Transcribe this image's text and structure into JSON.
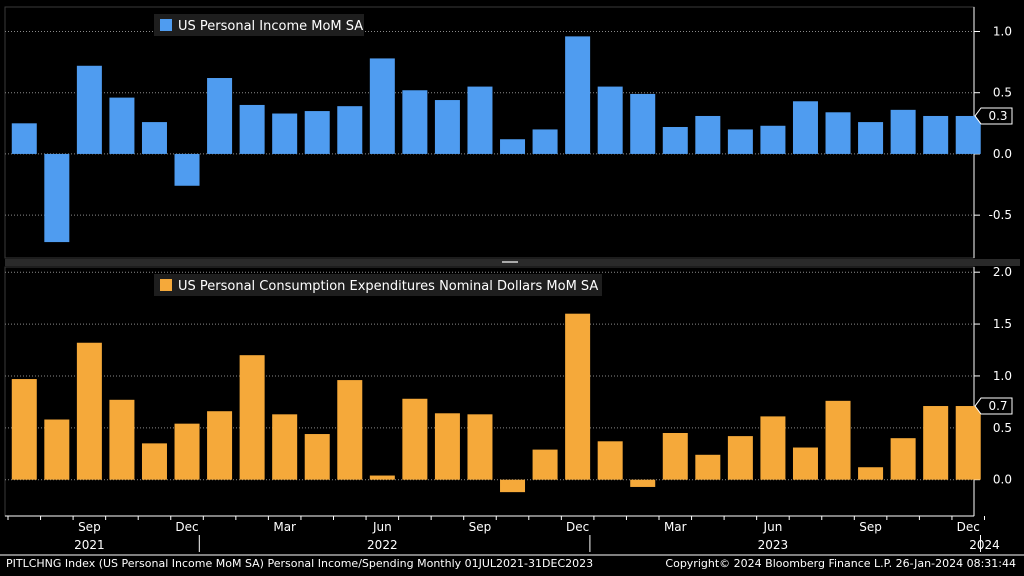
{
  "chart_data": [
    {
      "type": "bar",
      "legend": "US Personal Income MoM SA",
      "color": "#4f9cf0",
      "last_value_label": "0.3",
      "ylim": [
        -0.85,
        1.2
      ],
      "yticks": [
        1.0,
        0.5,
        0.0,
        -0.5
      ],
      "ytick_labels": [
        "1.0",
        "0.5",
        "0.0",
        "-0.5"
      ],
      "categories": [
        "2021-07",
        "2021-08",
        "2021-09",
        "2021-10",
        "2021-11",
        "2021-12",
        "2022-01",
        "2022-02",
        "2022-03",
        "2022-04",
        "2022-05",
        "2022-06",
        "2022-07",
        "2022-08",
        "2022-09",
        "2022-10",
        "2022-11",
        "2022-12",
        "2023-01",
        "2023-02",
        "2023-03",
        "2023-04",
        "2023-05",
        "2023-06",
        "2023-07",
        "2023-08",
        "2023-09",
        "2023-10",
        "2023-11",
        "2023-12"
      ],
      "values": [
        0.25,
        -0.72,
        0.72,
        0.46,
        0.26,
        -0.26,
        0.62,
        0.4,
        0.33,
        0.35,
        0.39,
        0.78,
        0.52,
        0.44,
        0.55,
        0.12,
        0.2,
        0.96,
        0.55,
        0.49,
        0.22,
        0.31,
        0.2,
        0.23,
        0.43,
        0.34,
        0.26,
        0.36,
        0.31,
        0.31
      ]
    },
    {
      "type": "bar",
      "legend": "US Personal Consumption Expenditures Nominal Dollars MoM SA",
      "color": "#f5a93a",
      "last_value_label": "0.7",
      "ylim": [
        -0.35,
        2.05
      ],
      "yticks": [
        2.0,
        1.5,
        1.0,
        0.5,
        0.0
      ],
      "ytick_labels": [
        "2.0",
        "1.5",
        "1.0",
        "0.5",
        "0.0"
      ],
      "categories": [
        "2021-07",
        "2021-08",
        "2021-09",
        "2021-10",
        "2021-11",
        "2021-12",
        "2022-01",
        "2022-02",
        "2022-03",
        "2022-04",
        "2022-05",
        "2022-06",
        "2022-07",
        "2022-08",
        "2022-09",
        "2022-10",
        "2022-11",
        "2022-12",
        "2023-01",
        "2023-02",
        "2023-03",
        "2023-04",
        "2023-05",
        "2023-06",
        "2023-07",
        "2023-08",
        "2023-09",
        "2023-10",
        "2023-11",
        "2023-12"
      ],
      "values": [
        0.97,
        0.58,
        1.32,
        0.77,
        0.35,
        0.54,
        0.66,
        1.2,
        0.63,
        0.44,
        0.96,
        0.04,
        0.78,
        0.64,
        0.63,
        -0.12,
        0.29,
        1.6,
        0.37,
        -0.07,
        0.45,
        0.24,
        0.42,
        0.61,
        0.31,
        0.76,
        0.12,
        0.4,
        0.71,
        0.71
      ]
    }
  ],
  "x_axis": {
    "month_labels": [
      {
        "index": 2,
        "label": "Sep"
      },
      {
        "index": 5,
        "label": "Dec"
      },
      {
        "index": 8,
        "label": "Mar"
      },
      {
        "index": 11,
        "label": "Jun"
      },
      {
        "index": 14,
        "label": "Sep"
      },
      {
        "index": 17,
        "label": "Dec"
      },
      {
        "index": 20,
        "label": "Mar"
      },
      {
        "index": 23,
        "label": "Jun"
      },
      {
        "index": 26,
        "label": "Sep"
      },
      {
        "index": 29,
        "label": "Dec"
      }
    ],
    "year_labels": [
      {
        "index": 2,
        "label": "2021"
      },
      {
        "index": 11,
        "label": "2022"
      },
      {
        "index": 23,
        "label": "2023"
      },
      {
        "index": 29.5,
        "label": "2024"
      }
    ]
  },
  "footer": {
    "left": "PITLCHNG Index (US Personal Income MoM SA) Personal Income/Spending  Monthly 01JUL2021-31DEC2023",
    "right": "Copyright© 2024 Bloomberg Finance L.P.      26-Jan-2024 08:31:44"
  }
}
